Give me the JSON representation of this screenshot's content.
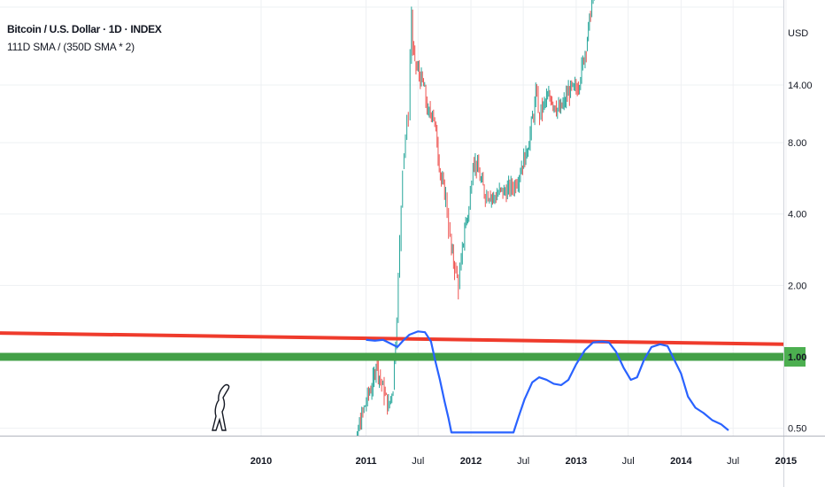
{
  "header": {
    "title": "Bitcoin / U.S. Dollar · 1D · INDEX",
    "study": "111D SMA / (350D SMA * 2)"
  },
  "colors": {
    "grid": "#eef0f3",
    "axis": "#d1d4dc",
    "candle_up": "#26a69a",
    "candle_down": "#ef5350",
    "indicator": "#2962ff",
    "red_line": "#ef3b2c",
    "green_line": "#43a047",
    "badge_bg": "#4caf50",
    "badge_text": "#ffffff"
  },
  "chart_data": {
    "type": "line",
    "title": "Bitcoin / U.S. Dollar · 1D · INDEX",
    "y_axis": {
      "scale": "log",
      "unit_label": "USD",
      "ticks": [
        "14.00",
        "8.00",
        "4.00",
        "2.00",
        "0.50"
      ],
      "tick_values": [
        14,
        8,
        4,
        2,
        0.5
      ],
      "highlight_tick": "1.00",
      "highlight_value": 1.0
    },
    "x_axis": {
      "ticks": [
        "2010",
        "2011",
        "Jul",
        "2012",
        "Jul",
        "2013",
        "Jul",
        "2014",
        "Jul",
        "2015"
      ],
      "tick_dates": [
        "2010-01-01",
        "2011-01-01",
        "2011-07-01",
        "2012-01-01",
        "2012-07-01",
        "2013-01-01",
        "2013-07-01",
        "2014-01-01",
        "2014-07-01",
        "2015-01-01"
      ],
      "bold_ticks": [
        "2010",
        "2011",
        "2012",
        "2013",
        "2014",
        "2015"
      ]
    },
    "grid": true,
    "series": [
      {
        "kind": "price",
        "points": [
          [
            "2010-10-15",
            0.12
          ],
          [
            "2010-11-15",
            0.25
          ],
          [
            "2010-12-05",
            0.5
          ],
          [
            "2011-01-10",
            0.7
          ],
          [
            "2011-01-25",
            0.78
          ],
          [
            "2011-02-05",
            0.95
          ],
          [
            "2011-02-20",
            0.8
          ],
          [
            "2011-03-05",
            0.7
          ],
          [
            "2011-03-20",
            0.62
          ],
          [
            "2011-04-05",
            0.75
          ],
          [
            "2011-04-18",
            1.5
          ],
          [
            "2011-04-28",
            3.0
          ],
          [
            "2011-05-08",
            6.5
          ],
          [
            "2011-05-18",
            8.5
          ],
          [
            "2011-05-28",
            10.5
          ],
          [
            "2011-06-03",
            18.5
          ],
          [
            "2011-06-08",
            28.0
          ],
          [
            "2011-06-12",
            20.0
          ],
          [
            "2011-06-20",
            17.5
          ],
          [
            "2011-07-05",
            15.5
          ],
          [
            "2011-07-20",
            13.8
          ],
          [
            "2011-08-05",
            10.5
          ],
          [
            "2011-08-20",
            11.0
          ],
          [
            "2011-09-05",
            8.0
          ],
          [
            "2011-09-20",
            5.5
          ],
          [
            "2011-10-05",
            4.8
          ],
          [
            "2011-10-15",
            3.5
          ],
          [
            "2011-10-25",
            2.8
          ],
          [
            "2011-11-05",
            2.4
          ],
          [
            "2011-11-18",
            2.0
          ],
          [
            "2011-11-28",
            2.5
          ],
          [
            "2011-12-10",
            3.5
          ],
          [
            "2011-12-25",
            4.2
          ],
          [
            "2012-01-08",
            6.8
          ],
          [
            "2012-01-20",
            6.4
          ],
          [
            "2012-02-05",
            5.5
          ],
          [
            "2012-02-20",
            4.8
          ],
          [
            "2012-03-05",
            4.9
          ],
          [
            "2012-03-20",
            4.7
          ],
          [
            "2012-04-05",
            4.9
          ],
          [
            "2012-04-25",
            5.0
          ],
          [
            "2012-05-15",
            5.1
          ],
          [
            "2012-06-05",
            5.4
          ],
          [
            "2012-06-25",
            6.4
          ],
          [
            "2012-07-10",
            7.2
          ],
          [
            "2012-07-25",
            8.8
          ],
          [
            "2012-08-10",
            11.5
          ],
          [
            "2012-08-17",
            13.5
          ],
          [
            "2012-08-22",
            10.5
          ],
          [
            "2012-09-05",
            11.0
          ],
          [
            "2012-09-20",
            12.2
          ],
          [
            "2012-10-05",
            12.4
          ],
          [
            "2012-10-20",
            11.5
          ],
          [
            "2012-11-05",
            10.8
          ],
          [
            "2012-11-20",
            11.8
          ],
          [
            "2012-12-05",
            13.2
          ],
          [
            "2012-12-20",
            13.4
          ],
          [
            "2013-01-05",
            13.6
          ],
          [
            "2013-01-20",
            16.5
          ],
          [
            "2013-02-05",
            20.5
          ],
          [
            "2013-02-20",
            28.0
          ],
          [
            "2013-03-01",
            34.0
          ],
          [
            "2013-03-10",
            45.0
          ]
        ]
      },
      {
        "kind": "indicator",
        "name": "111D SMA / (350D SMA * 2)",
        "points": [
          [
            "2011-01-01",
            1.18
          ],
          [
            "2011-02-01",
            1.17
          ],
          [
            "2011-03-01",
            1.18
          ],
          [
            "2011-04-01",
            1.13
          ],
          [
            "2011-04-20",
            1.1
          ],
          [
            "2011-05-10",
            1.17
          ],
          [
            "2011-06-01",
            1.24
          ],
          [
            "2011-07-01",
            1.28
          ],
          [
            "2011-07-25",
            1.27
          ],
          [
            "2011-08-15",
            1.16
          ],
          [
            "2011-08-30",
            0.96
          ],
          [
            "2011-09-15",
            0.8
          ],
          [
            "2011-10-01",
            0.65
          ],
          [
            "2011-10-15",
            0.55
          ],
          [
            "2011-10-25",
            0.48
          ],
          [
            "2012-05-28",
            0.48
          ],
          [
            "2012-06-15",
            0.56
          ],
          [
            "2012-07-05",
            0.66
          ],
          [
            "2012-08-01",
            0.78
          ],
          [
            "2012-08-25",
            0.82
          ],
          [
            "2012-09-20",
            0.8
          ],
          [
            "2012-10-15",
            0.77
          ],
          [
            "2012-11-10",
            0.76
          ],
          [
            "2012-12-05",
            0.8
          ],
          [
            "2013-01-01",
            0.93
          ],
          [
            "2013-02-01",
            1.07
          ],
          [
            "2013-03-01",
            1.15
          ],
          [
            "2013-04-01",
            1.16
          ],
          [
            "2013-04-25",
            1.15
          ],
          [
            "2013-05-20",
            1.05
          ],
          [
            "2013-06-15",
            0.9
          ],
          [
            "2013-07-10",
            0.8
          ],
          [
            "2013-08-01",
            0.82
          ],
          [
            "2013-08-25",
            0.97
          ],
          [
            "2013-09-20",
            1.1
          ],
          [
            "2013-10-20",
            1.13
          ],
          [
            "2013-11-15",
            1.11
          ],
          [
            "2013-12-05",
            0.99
          ],
          [
            "2014-01-01",
            0.85
          ],
          [
            "2014-01-25",
            0.68
          ],
          [
            "2014-02-20",
            0.61
          ],
          [
            "2014-03-20",
            0.58
          ],
          [
            "2014-04-20",
            0.54
          ],
          [
            "2014-05-20",
            0.52
          ],
          [
            "2014-06-15",
            0.49
          ]
        ]
      },
      {
        "kind": "line",
        "color_key": "red_line",
        "points": [
          [
            "2009-01-01",
            1.26
          ],
          [
            "2014-12-15",
            1.13
          ]
        ]
      },
      {
        "kind": "line",
        "color_key": "green_line",
        "points": [
          [
            "2009-01-01",
            1.0
          ],
          [
            "2014-12-15",
            1.0
          ]
        ]
      }
    ]
  }
}
